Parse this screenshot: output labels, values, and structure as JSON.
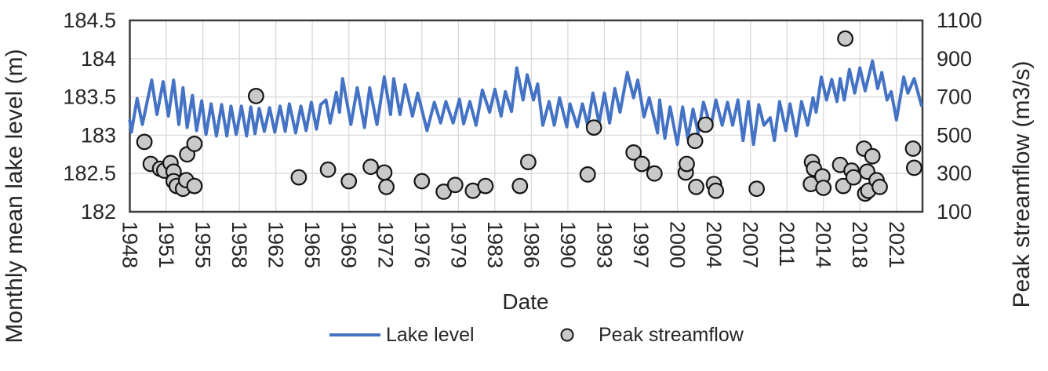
{
  "chart_data": {
    "type": "line+scatter",
    "title": "",
    "x_axis": {
      "label": "Date",
      "start_year": 1948,
      "end_year": 2024,
      "tick_interval_years": 3.5,
      "tick_labels": [
        "1948",
        "1951",
        "1955",
        "1958",
        "1962",
        "1965",
        "1969",
        "1972",
        "1976",
        "1979",
        "1983",
        "1986",
        "1990",
        "1993",
        "1997",
        "2000",
        "2004",
        "2007",
        "2011",
        "2014",
        "2018",
        "2021"
      ]
    },
    "y_axis_left": {
      "label": "Monthly mean lake level (m)",
      "min": 182,
      "max": 184.5,
      "ticks": [
        {
          "value": 184.5,
          "label": "184.5"
        },
        {
          "value": 184,
          "label": "184"
        },
        {
          "value": 183.5,
          "label": "183.5"
        },
        {
          "value": 183,
          "label": "183"
        },
        {
          "value": 182.5,
          "label": "182.5"
        },
        {
          "value": 182,
          "label": "182"
        }
      ]
    },
    "y_axis_right": {
      "label": "Peak streamflow (m3/s)",
      "min": 100,
      "max": 1100,
      "ticks": [
        {
          "value": 1100,
          "label": "1100"
        },
        {
          "value": 900,
          "label": "900"
        },
        {
          "value": 700,
          "label": "700"
        },
        {
          "value": 500,
          "label": "500"
        },
        {
          "value": 300,
          "label": "300"
        },
        {
          "value": 100,
          "label": "100"
        }
      ]
    },
    "grid": {
      "line_color": "#D9D9D9",
      "border_color": "#3D3D3D"
    },
    "legend": {
      "items": [
        {
          "label": "Lake level"
        },
        {
          "label": "Peak streamflow"
        }
      ]
    },
    "series": [
      {
        "name": "Lake level",
        "type": "line",
        "axis": "left",
        "color": "#4472C4",
        "stroke_width": 4,
        "points": [
          [
            1948.0,
            183.19
          ],
          [
            1948.15,
            183.04
          ],
          [
            1948.7,
            183.48
          ],
          [
            1949.2,
            183.14
          ],
          [
            1950.1,
            183.72
          ],
          [
            1950.6,
            183.27
          ],
          [
            1951.2,
            183.7
          ],
          [
            1951.7,
            183.25
          ],
          [
            1952.2,
            183.72
          ],
          [
            1952.7,
            183.14
          ],
          [
            1953.1,
            183.62
          ],
          [
            1953.5,
            183.1
          ],
          [
            1954.0,
            183.52
          ],
          [
            1954.4,
            183.06
          ],
          [
            1954.9,
            183.45
          ],
          [
            1955.3,
            183.01
          ],
          [
            1955.8,
            183.41
          ],
          [
            1956.3,
            182.99
          ],
          [
            1956.8,
            183.4
          ],
          [
            1957.3,
            182.99
          ],
          [
            1957.7,
            183.38
          ],
          [
            1958.2,
            183.01
          ],
          [
            1958.7,
            183.38
          ],
          [
            1959.2,
            182.99
          ],
          [
            1959.6,
            183.37
          ],
          [
            1960.0,
            183.02
          ],
          [
            1960.4,
            183.35
          ],
          [
            1960.9,
            183.05
          ],
          [
            1961.4,
            183.36
          ],
          [
            1961.9,
            183.04
          ],
          [
            1962.4,
            183.38
          ],
          [
            1962.9,
            183.05
          ],
          [
            1963.3,
            183.41
          ],
          [
            1963.9,
            183.03
          ],
          [
            1964.4,
            183.38
          ],
          [
            1964.9,
            183.06
          ],
          [
            1965.4,
            183.43
          ],
          [
            1965.9,
            183.08
          ],
          [
            1966.3,
            183.4
          ],
          [
            1966.8,
            183.46
          ],
          [
            1967.2,
            183.16
          ],
          [
            1967.8,
            183.56
          ],
          [
            1968.1,
            183.3
          ],
          [
            1968.4,
            183.74
          ],
          [
            1969.2,
            183.14
          ],
          [
            1969.8,
            183.62
          ],
          [
            1970.5,
            183.1
          ],
          [
            1971.0,
            183.62
          ],
          [
            1971.7,
            183.14
          ],
          [
            1972.4,
            183.76
          ],
          [
            1973.0,
            183.27
          ],
          [
            1973.3,
            183.74
          ],
          [
            1973.9,
            183.27
          ],
          [
            1974.4,
            183.66
          ],
          [
            1975.1,
            183.25
          ],
          [
            1975.6,
            183.55
          ],
          [
            1976.5,
            183.06
          ],
          [
            1977.2,
            183.43
          ],
          [
            1977.8,
            183.16
          ],
          [
            1978.3,
            183.44
          ],
          [
            1979.0,
            183.16
          ],
          [
            1979.6,
            183.47
          ],
          [
            1980.0,
            183.15
          ],
          [
            1980.6,
            183.44
          ],
          [
            1981.2,
            183.13
          ],
          [
            1981.8,
            183.59
          ],
          [
            1982.5,
            183.3
          ],
          [
            1983.0,
            183.6
          ],
          [
            1983.6,
            183.25
          ],
          [
            1984.0,
            183.57
          ],
          [
            1984.6,
            183.31
          ],
          [
            1985.1,
            183.88
          ],
          [
            1985.7,
            183.46
          ],
          [
            1986.1,
            183.79
          ],
          [
            1986.7,
            183.46
          ],
          [
            1987.1,
            183.67
          ],
          [
            1987.6,
            183.13
          ],
          [
            1988.2,
            183.44
          ],
          [
            1988.7,
            183.13
          ],
          [
            1989.2,
            183.49
          ],
          [
            1989.9,
            183.11
          ],
          [
            1990.2,
            183.41
          ],
          [
            1990.9,
            183.11
          ],
          [
            1991.4,
            183.41
          ],
          [
            1991.9,
            183.13
          ],
          [
            1992.4,
            183.55
          ],
          [
            1993.0,
            183.16
          ],
          [
            1993.5,
            183.55
          ],
          [
            1994.0,
            183.16
          ],
          [
            1994.5,
            183.61
          ],
          [
            1995.0,
            183.3
          ],
          [
            1995.7,
            183.82
          ],
          [
            1996.3,
            183.49
          ],
          [
            1996.7,
            183.72
          ],
          [
            1997.3,
            183.24
          ],
          [
            1997.8,
            183.49
          ],
          [
            1998.6,
            183.03
          ],
          [
            1998.8,
            183.46
          ],
          [
            1999.3,
            182.96
          ],
          [
            1999.8,
            183.37
          ],
          [
            2000.5,
            182.88
          ],
          [
            2001.0,
            183.37
          ],
          [
            2001.5,
            182.96
          ],
          [
            2002.0,
            183.34
          ],
          [
            2002.5,
            183.03
          ],
          [
            2003.0,
            183.43
          ],
          [
            2003.7,
            183.11
          ],
          [
            2004.2,
            183.46
          ],
          [
            2004.8,
            183.13
          ],
          [
            2005.3,
            183.43
          ],
          [
            2005.8,
            183.13
          ],
          [
            2006.3,
            183.46
          ],
          [
            2006.8,
            182.93
          ],
          [
            2007.3,
            183.44
          ],
          [
            2007.8,
            182.88
          ],
          [
            2008.3,
            183.4
          ],
          [
            2008.8,
            183.13
          ],
          [
            2009.4,
            183.23
          ],
          [
            2009.8,
            182.93
          ],
          [
            2010.3,
            183.44
          ],
          [
            2010.9,
            183.06
          ],
          [
            2011.3,
            183.41
          ],
          [
            2011.9,
            182.99
          ],
          [
            2012.4,
            183.44
          ],
          [
            2013.0,
            183.13
          ],
          [
            2013.5,
            183.49
          ],
          [
            2013.8,
            183.3
          ],
          [
            2014.3,
            183.76
          ],
          [
            2014.8,
            183.46
          ],
          [
            2015.3,
            183.73
          ],
          [
            2015.8,
            183.44
          ],
          [
            2016.1,
            183.74
          ],
          [
            2016.5,
            183.46
          ],
          [
            2017.0,
            183.86
          ],
          [
            2017.5,
            183.55
          ],
          [
            2018.0,
            183.88
          ],
          [
            2018.5,
            183.58
          ],
          [
            2019.2,
            183.97
          ],
          [
            2019.7,
            183.61
          ],
          [
            2020.1,
            183.82
          ],
          [
            2020.6,
            183.46
          ],
          [
            2021.0,
            183.57
          ],
          [
            2021.5,
            183.2
          ],
          [
            2022.2,
            183.76
          ],
          [
            2022.6,
            183.55
          ],
          [
            2023.2,
            183.74
          ],
          [
            2023.9,
            183.39
          ]
        ]
      },
      {
        "name": "Peak streamflow",
        "type": "scatter",
        "axis": "right",
        "marker_fill": "#C9C9C9",
        "marker_stroke": "#141414",
        "marker_radius": 9.3,
        "points": [
          [
            1949.4,
            465
          ],
          [
            1950.0,
            350
          ],
          [
            1950.9,
            325
          ],
          [
            1951.3,
            315
          ],
          [
            1951.9,
            355
          ],
          [
            1952.2,
            310
          ],
          [
            1952.2,
            260
          ],
          [
            1952.5,
            235
          ],
          [
            1953.1,
            220
          ],
          [
            1953.4,
            265
          ],
          [
            1953.5,
            400
          ],
          [
            1954.2,
            455
          ],
          [
            1954.2,
            235
          ],
          [
            1960.1,
            705
          ],
          [
            1964.2,
            280
          ],
          [
            1967.0,
            320
          ],
          [
            1969.0,
            260
          ],
          [
            1971.1,
            335
          ],
          [
            1972.4,
            305
          ],
          [
            1972.6,
            230
          ],
          [
            1976.0,
            260
          ],
          [
            1978.1,
            205
          ],
          [
            1979.2,
            240
          ],
          [
            1980.9,
            210
          ],
          [
            1982.1,
            235
          ],
          [
            1985.4,
            235
          ],
          [
            1986.2,
            360
          ],
          [
            1991.9,
            295
          ],
          [
            1992.5,
            540
          ],
          [
            1996.3,
            410
          ],
          [
            1997.1,
            350
          ],
          [
            1998.3,
            300
          ],
          [
            2001.3,
            305
          ],
          [
            2001.4,
            350
          ],
          [
            2002.2,
            470
          ],
          [
            2002.3,
            230
          ],
          [
            2003.2,
            555
          ],
          [
            2004.0,
            245
          ],
          [
            2004.2,
            210
          ],
          [
            2008.1,
            220
          ],
          [
            2013.3,
            245
          ],
          [
            2013.4,
            360
          ],
          [
            2013.6,
            325
          ],
          [
            2014.4,
            285
          ],
          [
            2014.5,
            225
          ],
          [
            2016.1,
            345
          ],
          [
            2016.4,
            235
          ],
          [
            2016.6,
            1005
          ],
          [
            2017.2,
            315
          ],
          [
            2017.4,
            280
          ],
          [
            2018.4,
            430
          ],
          [
            2018.5,
            195
          ],
          [
            2018.7,
            310
          ],
          [
            2018.8,
            210
          ],
          [
            2019.2,
            390
          ],
          [
            2019.6,
            265
          ],
          [
            2019.9,
            230
          ],
          [
            2023.1,
            430
          ],
          [
            2023.2,
            330
          ]
        ]
      }
    ]
  }
}
